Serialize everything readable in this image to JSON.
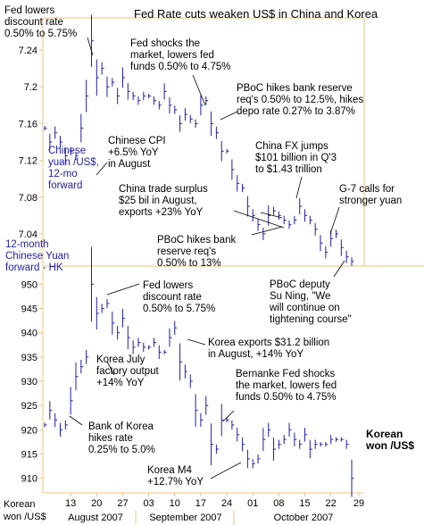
{
  "title": "Fed Rate cuts weaken US$ in China and Korea",
  "colors": {
    "axis_frame": "#f0c080",
    "series": "#1f1fa8",
    "text": "#000000",
    "blue_label": "#1f1fa8"
  },
  "chart_data": [
    {
      "type": "line",
      "name": "Chinese yuan /US$, 12-mo forward",
      "series_label": "Chinese\nyuan /US$,\n12-mo\nforward",
      "axis_title": "12-month\nChinese Yuan\nforward - HK",
      "ylim": [
        7.005,
        7.275
      ],
      "yticks": [
        7.04,
        7.08,
        7.12,
        7.16,
        7.2,
        7.24
      ],
      "ytick_labels": [
        "7.04",
        "7.08",
        "7.12",
        "7.16",
        "7.2",
        "7.24"
      ],
      "x": [
        "Aug 6",
        "Aug 7",
        "Aug 8",
        "Aug 9",
        "Aug 10",
        "Aug 13",
        "Aug 14",
        "Aug 15",
        "Aug 16",
        "Aug 17",
        "Aug 20",
        "Aug 21",
        "Aug 22",
        "Aug 23",
        "Aug 24",
        "Aug 27",
        "Aug 28",
        "Aug 29",
        "Aug 30",
        "Aug 31",
        "Sep 3",
        "Sep 4",
        "Sep 5",
        "Sep 6",
        "Sep 7",
        "Sep 10",
        "Sep 11",
        "Sep 12",
        "Sep 13",
        "Sep 14",
        "Sep 17",
        "Sep 18",
        "Sep 19",
        "Sep 20",
        "Sep 21",
        "Sep 24",
        "Sep 25",
        "Sep 26",
        "Sep 27",
        "Sep 28",
        "Oct 1",
        "Oct 2",
        "Oct 3",
        "Oct 4",
        "Oct 5",
        "Oct 8",
        "Oct 9",
        "Oct 10",
        "Oct 11",
        "Oct 12",
        "Oct 15",
        "Oct 16",
        "Oct 17",
        "Oct 18",
        "Oct 19",
        "Oct 22",
        "Oct 23",
        "Oct 24",
        "Oct 25",
        "Oct 26"
      ],
      "values": [
        7.155,
        7.14,
        7.15,
        7.14,
        7.125,
        7.13,
        7.125,
        7.155,
        7.19,
        7.25,
        7.21,
        7.22,
        7.2,
        7.205,
        7.19,
        7.21,
        7.195,
        7.19,
        7.185,
        7.19,
        7.19,
        7.185,
        7.18,
        7.195,
        7.18,
        7.175,
        7.16,
        7.17,
        7.165,
        7.16,
        7.18,
        7.185,
        7.16,
        7.15,
        7.13,
        7.13,
        7.11,
        7.095,
        7.09,
        7.07,
        7.06,
        7.05,
        7.04,
        7.06,
        7.065,
        7.06,
        7.055,
        7.05,
        7.055,
        7.07,
        7.06,
        7.055,
        7.045,
        7.03,
        7.02,
        7.035,
        7.04,
        7.025,
        7.015,
        7.01
      ]
    },
    {
      "type": "line",
      "name": "Korean won /US$",
      "series_label": "Korean\nwon /US$",
      "axis_title": "Korean\nwon /US$",
      "ylim": [
        907,
        953
      ],
      "yticks": [
        910,
        915,
        920,
        925,
        930,
        935,
        940,
        945,
        950
      ],
      "ytick_labels": [
        "910",
        "915",
        "920",
        "925",
        "930",
        "935",
        "940",
        "945",
        "950"
      ],
      "x": [
        "Aug 6",
        "Aug 7",
        "Aug 8",
        "Aug 9",
        "Aug 10",
        "Aug 13",
        "Aug 14",
        "Aug 15",
        "Aug 16",
        "Aug 17",
        "Aug 20",
        "Aug 21",
        "Aug 22",
        "Aug 23",
        "Aug 24",
        "Aug 27",
        "Aug 28",
        "Aug 29",
        "Aug 30",
        "Aug 31",
        "Sep 3",
        "Sep 4",
        "Sep 5",
        "Sep 6",
        "Sep 7",
        "Sep 10",
        "Sep 11",
        "Sep 12",
        "Sep 13",
        "Sep 14",
        "Sep 17",
        "Sep 18",
        "Sep 19",
        "Sep 20",
        "Sep 21",
        "Sep 24",
        "Sep 25",
        "Sep 26",
        "Sep 27",
        "Sep 28",
        "Oct 1",
        "Oct 2",
        "Oct 3",
        "Oct 4",
        "Oct 5",
        "Oct 8",
        "Oct 9",
        "Oct 10",
        "Oct 11",
        "Oct 12",
        "Oct 15",
        "Oct 16",
        "Oct 17",
        "Oct 18",
        "Oct 19",
        "Oct 22",
        "Oct 23",
        "Oct 24",
        "Oct 25",
        "Oct 26"
      ],
      "values": [
        921,
        924,
        922,
        920,
        921,
        926,
        931,
        933,
        935,
        950,
        944,
        945,
        946,
        942,
        940,
        943,
        939,
        937,
        938,
        937,
        937,
        938,
        936,
        936,
        939,
        941,
        934,
        932,
        930,
        924,
        922,
        925,
        917,
        916,
        922,
        922,
        921,
        919,
        917,
        914,
        913,
        914,
        918,
        920,
        916,
        917,
        918,
        920,
        918,
        917,
        919,
        916,
        917,
        917,
        917,
        918,
        918,
        918,
        917,
        910
      ]
    }
  ],
  "x_axis": {
    "ticks": [
      "13",
      "20",
      "27",
      "03",
      "10",
      "17",
      "24",
      "01",
      "08",
      "15",
      "22",
      "29"
    ],
    "months": [
      "August 2007",
      "September 2007",
      "October 2007"
    ],
    "corner_label": "Korean\nwon /US$"
  },
  "annotations": {
    "fed_discount_top": "Fed lowers\ndiscount rate\n0.50% to 5.75%",
    "fed_shocks_top": "Fed shocks the\nmarket, lowers fed\nfunds 0.50% to 4.75%",
    "pboc_reserve_top": "PBoC hikes bank reserve\nreq's 0.50% to 12.5%, hikes\ndepo rate 0.27% to 3.87%",
    "china_cpi": "Chinese CPI\n+6.5% YoY\nin August",
    "china_fx": "China FX jumps\n$101 billion in Q'3\nto $1.43 trillion",
    "china_trade": "China trade surplus\n$25 bil in August,\nexports +23% YoY",
    "g7": "G-7 calls for\nstronger yuan",
    "pboc_reserve_13": "PBoC hikes bank\nreserve req's\n0.50% to 13%",
    "pboc_deputy": "PBoC deputy\nSu Ning, \"We\nwill continue on\ntightening course\"",
    "fed_discount_bottom": "Fed lowers\ndiscount rate\n0.50% to 5.75%",
    "korea_exports": "Korea exports $31.2 billion\nin August, +14% YoY",
    "korea_factory": "Korea July\nfactory output\n+14% YoY",
    "bernanke": "Bernanke Fed shocks\nthe market, lowers fed\nfunds 0.50% to 4.75%",
    "bok": "Bank of Korea\nhikes rate\n0.25% to 5.0%",
    "korea_m4": "Korea M4\n+12.7% YoY"
  }
}
